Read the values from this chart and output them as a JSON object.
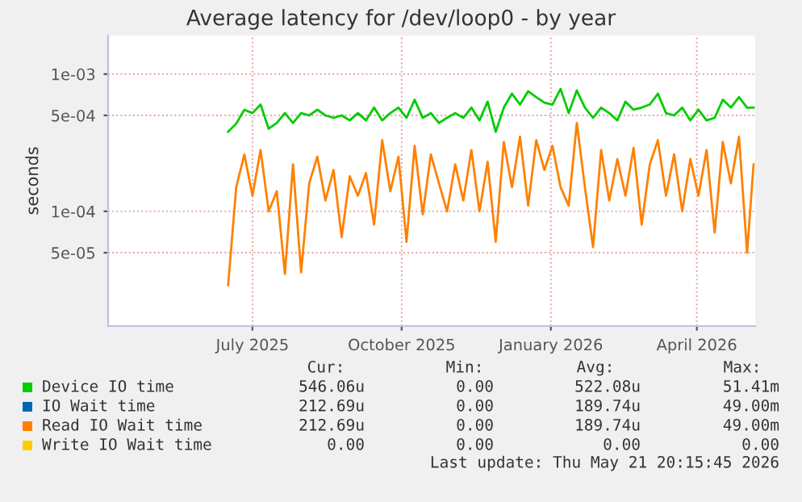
{
  "chart_data": {
    "type": "line",
    "title": "Average latency for /dev/loop0 - by year",
    "ylabel": "seconds",
    "x": [
      "2025-07-01",
      "2025-07-06",
      "2025-07-11",
      "2025-07-16",
      "2025-07-21",
      "2025-07-26",
      "2025-07-31",
      "2025-08-05",
      "2025-08-10",
      "2025-08-15",
      "2025-08-20",
      "2025-08-25",
      "2025-08-30",
      "2025-09-04",
      "2025-09-09",
      "2025-09-14",
      "2025-09-19",
      "2025-09-24",
      "2025-09-29",
      "2025-10-04",
      "2025-10-09",
      "2025-10-14",
      "2025-10-19",
      "2025-10-24",
      "2025-10-29",
      "2025-11-03",
      "2025-11-08",
      "2025-11-13",
      "2025-11-18",
      "2025-11-23",
      "2025-11-28",
      "2025-12-03",
      "2025-12-08",
      "2025-12-13",
      "2025-12-18",
      "2025-12-23",
      "2025-12-28",
      "2026-01-02",
      "2026-01-07",
      "2026-01-12",
      "2026-01-17",
      "2026-01-22",
      "2026-01-27",
      "2026-02-01",
      "2026-02-06",
      "2026-02-11",
      "2026-02-16",
      "2026-02-21",
      "2026-02-26",
      "2026-03-03",
      "2026-03-08",
      "2026-03-13",
      "2026-03-18",
      "2026-03-23",
      "2026-03-28",
      "2026-04-02",
      "2026-04-07",
      "2026-04-12",
      "2026-04-17",
      "2026-04-22",
      "2026-04-27",
      "2026-05-02",
      "2026-05-07",
      "2026-05-12",
      "2026-05-17",
      "2026-05-21"
    ],
    "series": [
      {
        "name": "Device IO time",
        "color": "#00cc00",
        "values": [
          0.00038,
          0.000436,
          0.00055,
          0.00052,
          0.0006,
          0.0004,
          0.00044,
          0.00052,
          0.00044,
          0.00052,
          0.0005,
          0.00055,
          0.0005,
          0.00048,
          0.0005,
          0.00046,
          0.00052,
          0.00046,
          0.00057,
          0.00046,
          0.00052,
          0.00057,
          0.00048,
          0.00065,
          0.00048,
          0.00052,
          0.00044,
          0.00048,
          0.00052,
          0.00048,
          0.00057,
          0.00046,
          0.00063,
          0.00038,
          0.00057,
          0.00072,
          0.0006,
          0.00075,
          0.00068,
          0.00062,
          0.0006,
          0.00078,
          0.00052,
          0.00076,
          0.00057,
          0.00048,
          0.00057,
          0.00052,
          0.00046,
          0.00063,
          0.00055,
          0.00057,
          0.0006,
          0.00072,
          0.00052,
          0.0005,
          0.00057,
          0.00046,
          0.00055,
          0.00046,
          0.00048,
          0.00065,
          0.00057,
          0.00068,
          0.00057,
          0.00057
        ]
      },
      {
        "name": "IO Wait time",
        "color": "#0066b3",
        "values": [
          null,
          null,
          null,
          null,
          null,
          null,
          null,
          null,
          null,
          null,
          null,
          null,
          null,
          null,
          null,
          null,
          null,
          null,
          null,
          null,
          null,
          null,
          null,
          null,
          null,
          null,
          null,
          null,
          null,
          null,
          null,
          null,
          null,
          null,
          null,
          null,
          null,
          null,
          null,
          null,
          null,
          null,
          null,
          null,
          null,
          null,
          null,
          null,
          null,
          null,
          null,
          null,
          null,
          null,
          null,
          null,
          null,
          null,
          null,
          null,
          null,
          null,
          null,
          null,
          null,
          null
        ]
      },
      {
        "name": "Read IO Wait time",
        "color": "#ff8000",
        "values": [
          2.9e-05,
          0.00015,
          0.00026,
          0.00013,
          0.00028,
          0.0001,
          0.00014,
          3.5e-05,
          0.00022,
          3.6e-05,
          0.00016,
          0.00025,
          0.00012,
          0.0002,
          6.5e-05,
          0.00018,
          0.00013,
          0.00019,
          8e-05,
          0.00033,
          0.00014,
          0.00025,
          6e-05,
          0.0003,
          9.5e-05,
          0.00026,
          0.00016,
          0.0001,
          0.00022,
          0.00012,
          0.00028,
          0.0001,
          0.00023,
          6e-05,
          0.00032,
          0.00015,
          0.00035,
          0.00011,
          0.00033,
          0.0002,
          0.0003,
          0.00015,
          0.00011,
          0.00044,
          0.00015,
          5.5e-05,
          0.00028,
          0.00012,
          0.00024,
          0.00013,
          0.00029,
          8e-05,
          0.00022,
          0.00033,
          0.00013,
          0.00026,
          0.0001,
          0.00024,
          0.00013,
          0.00028,
          7e-05,
          0.00032,
          0.00016,
          0.00035,
          5e-05,
          0.00022
        ]
      },
      {
        "name": "Write IO Wait time",
        "color": "#ffcc00",
        "values": [
          null,
          null,
          null,
          null,
          null,
          null,
          null,
          null,
          null,
          null,
          null,
          null,
          null,
          null,
          null,
          null,
          null,
          null,
          null,
          null,
          null,
          null,
          null,
          null,
          null,
          null,
          null,
          null,
          null,
          null,
          null,
          null,
          null,
          null,
          null,
          null,
          null,
          null,
          null,
          null,
          null,
          null,
          null,
          null,
          null,
          null,
          null,
          null,
          null,
          null,
          null,
          null,
          null,
          null,
          null,
          null,
          null,
          null,
          null,
          null,
          null,
          null,
          null,
          null,
          null,
          null
        ]
      }
    ],
    "log": "y",
    "xlim": [
      "2025-04-18",
      "2026-05-22"
    ],
    "xticks": [
      {
        "value": "2025-07-16",
        "label": "July 2025"
      },
      {
        "value": "2025-10-16",
        "label": "October 2025"
      },
      {
        "value": "2026-01-16",
        "label": "January 2026"
      },
      {
        "value": "2026-04-16",
        "label": "April 2026"
      }
    ],
    "ylim": [
      1.46e-05,
      0.00191
    ],
    "yticks": [
      {
        "value": 5e-05,
        "label": "5e-05"
      },
      {
        "value": 0.0001,
        "label": "1e-04"
      },
      {
        "value": 0.0005,
        "label": "5e-04"
      },
      {
        "value": 0.001,
        "label": "1e-03"
      }
    ],
    "grid": true,
    "legend": "bottom",
    "annotations": [
      "Cur:",
      "Min:",
      "Avg:",
      "Max:",
      "546.06u",
      "0.00",
      "522.08u",
      "51.41m",
      "212.69u",
      "0.00",
      "189.74u",
      "49.00m",
      "212.69u",
      "0.00",
      "189.74u",
      "49.00m",
      "0.00",
      "0.00",
      "0.00",
      "0.00",
      "Last update: Thu May 21 20:15:45 2026"
    ]
  }
}
